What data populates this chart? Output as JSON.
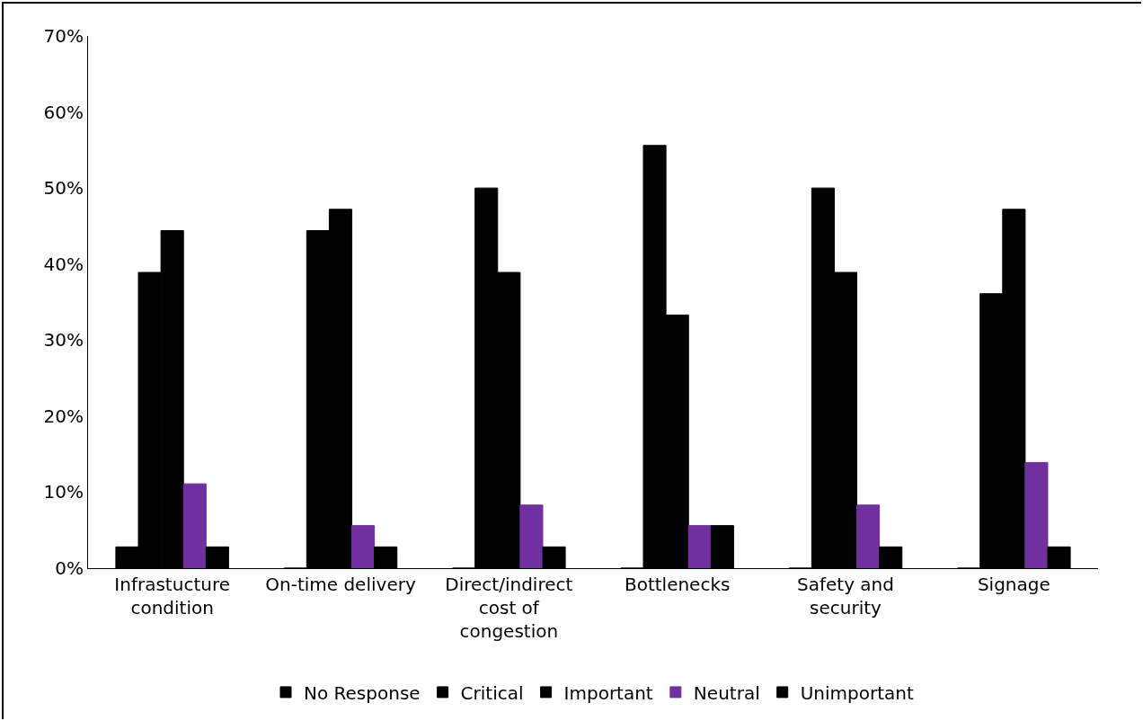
{
  "chart_data": {
    "type": "bar",
    "categories": [
      "Infrastucture condition",
      "On-time delivery",
      "Direct/indirect cost of congestion",
      "Bottlenecks",
      "Safety and security",
      "Signage"
    ],
    "series": [
      {
        "name": "No Response",
        "color": "#000000",
        "values": [
          2.8,
          0,
          0,
          0,
          0,
          0
        ]
      },
      {
        "name": "Critical",
        "color": "#000000",
        "values": [
          38.9,
          44.4,
          50.0,
          55.6,
          50.0,
          36.1
        ]
      },
      {
        "name": "Important",
        "color": "#000000",
        "values": [
          44.4,
          47.2,
          38.9,
          33.3,
          38.9,
          47.2
        ]
      },
      {
        "name": "Neutral",
        "color": "#7030a0",
        "values": [
          11.1,
          5.6,
          8.3,
          5.6,
          8.3,
          13.9
        ]
      },
      {
        "name": "Unimportant",
        "color": "#000000",
        "values": [
          2.8,
          2.8,
          2.8,
          5.6,
          2.8,
          2.8
        ]
      }
    ],
    "ylim": [
      0,
      70
    ],
    "yticks": [
      {
        "value": 0,
        "label": "0%"
      },
      {
        "value": 10,
        "label": "10%"
      },
      {
        "value": 20,
        "label": "20%"
      },
      {
        "value": 30,
        "label": "30%"
      },
      {
        "value": 40,
        "label": "40%"
      },
      {
        "value": 50,
        "label": "50%"
      },
      {
        "value": 60,
        "label": "60%"
      },
      {
        "value": 70,
        "label": "70%"
      }
    ],
    "grid": false,
    "legend": "bottom"
  }
}
